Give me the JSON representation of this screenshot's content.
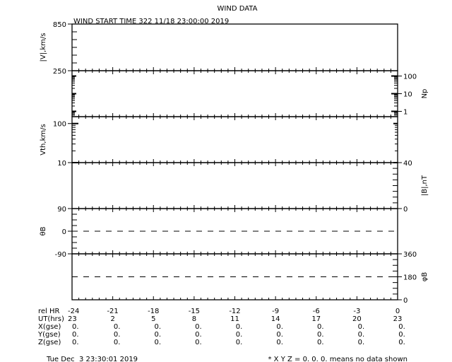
{
  "title": "WIND DATA",
  "subtitle": "WIND START TIME 322 11/18 23:00:00 2019",
  "chart_data": [
    {
      "type": "line",
      "ylabel": "|V|,km/s",
      "ylim": [
        250,
        850
      ],
      "ticks": [
        "850",
        "250"
      ],
      "axis_side": "left",
      "series": []
    },
    {
      "type": "line",
      "ylabel": "Np",
      "ylim": [
        0.5,
        200
      ],
      "log": true,
      "ticks": [
        "100",
        "10",
        "1"
      ],
      "axis_side": "right",
      "series": []
    },
    {
      "type": "line",
      "ylabel": "Vth,km/s",
      "ylim": [
        10,
        150
      ],
      "log": true,
      "ticks": [
        "100",
        "10"
      ],
      "axis_side": "left",
      "series": []
    },
    {
      "type": "line",
      "ylabel": "|B|,nT",
      "ylim": [
        0,
        40
      ],
      "ticks": [
        "40",
        "0"
      ],
      "axis_side": "right",
      "series": []
    },
    {
      "type": "line",
      "ylabel": "θB",
      "ylim": [
        -90,
        90
      ],
      "ticks": [
        "90",
        "0",
        "-90"
      ],
      "axis_side": "left",
      "reference_line": 0,
      "series": []
    },
    {
      "type": "line",
      "ylabel": "φB",
      "ylim": [
        0,
        360
      ],
      "ticks": [
        "360",
        "180",
        "0"
      ],
      "axis_side": "right",
      "reference_line": 180,
      "series": []
    }
  ],
  "xaxis": {
    "range": [
      -24,
      0
    ],
    "rows": [
      {
        "label": "rel HR",
        "values": [
          "-24",
          "-21",
          "-18",
          "-15",
          "-12",
          "-9",
          "-6",
          "-3",
          "0"
        ]
      },
      {
        "label": "UT(hrs)",
        "values": [
          "23",
          "2",
          "5",
          "8",
          "11",
          "14",
          "17",
          "20",
          "23"
        ]
      },
      {
        "label": "X(gse)",
        "values": [
          "0.",
          "0.",
          "0.",
          "0.",
          "0.",
          "0.",
          "0.",
          "0.",
          "0."
        ]
      },
      {
        "label": "Y(gse)",
        "values": [
          "0.",
          "0.",
          "0.",
          "0.",
          "0.",
          "0.",
          "0.",
          "0.",
          "0."
        ]
      },
      {
        "label": "Z(gse)",
        "values": [
          "0.",
          "0.",
          "0.",
          "0.",
          "0.",
          "0.",
          "0.",
          "0.",
          "0."
        ]
      }
    ]
  },
  "footer": {
    "timestamp": "Tue Dec  3 23:30:01 2019",
    "note": "* X Y Z = 0. 0. 0. means no data shown"
  }
}
